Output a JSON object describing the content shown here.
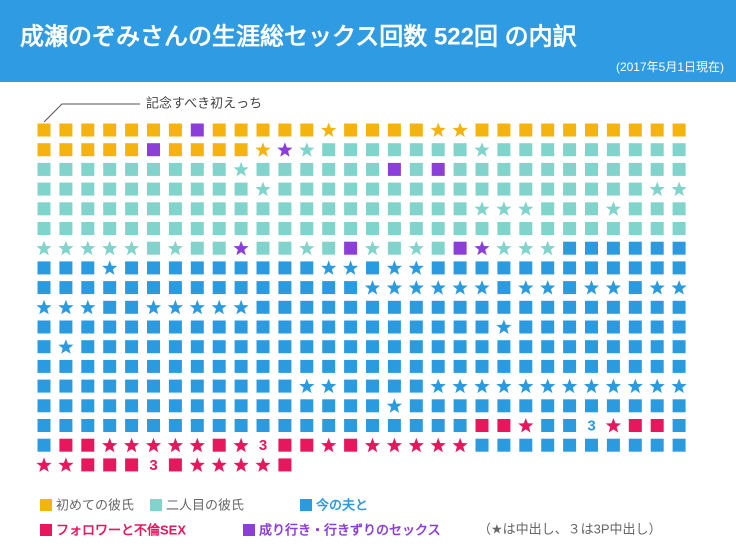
{
  "chart_data": {
    "type": "waffle",
    "title": "成瀬のぞみさんの生涯総セックス回数 522回 の内訳",
    "subtitle": "(2017年5月1日現在)",
    "annotation": "記念すべき初えっち",
    "three_label": "3",
    "legend_note": "（★は中出し、３は3P中出し）",
    "series": [
      {
        "name": "初めての彼氏",
        "color": "#f5b30f"
      },
      {
        "name": "二人目の彼氏",
        "color": "#80d4cc"
      },
      {
        "name": "今の夫と",
        "color": "#2b9be0"
      },
      {
        "name": "フォロワーと不倫SEX",
        "color": "#e8175d"
      },
      {
        "name": "成り行き・行きずりのセックス",
        "color": "#8b3fd8"
      }
    ],
    "runs": [
      [
        0,
        0,
        7
      ],
      [
        4,
        0,
        1
      ],
      [
        0,
        0,
        5
      ],
      [
        0,
        1,
        1
      ],
      [
        0,
        0,
        4
      ],
      [
        0,
        1,
        2
      ],
      [
        0,
        0,
        10
      ],
      [
        0,
        0,
        5
      ],
      [
        4,
        0,
        1
      ],
      [
        0,
        0,
        4
      ],
      [
        0,
        1,
        1
      ],
      [
        4,
        1,
        1
      ],
      [
        1,
        1,
        1
      ],
      [
        1,
        0,
        7
      ],
      [
        1,
        1,
        1
      ],
      [
        1,
        0,
        9
      ],
      [
        1,
        0,
        9
      ],
      [
        1,
        1,
        1
      ],
      [
        1,
        0,
        6
      ],
      [
        4,
        0,
        1
      ],
      [
        1,
        0,
        1
      ],
      [
        4,
        0,
        1
      ],
      [
        1,
        0,
        11
      ],
      [
        1,
        0,
        10
      ],
      [
        1,
        1,
        1
      ],
      [
        1,
        0,
        17
      ],
      [
        1,
        1,
        2
      ],
      [
        1,
        0,
        20
      ],
      [
        1,
        1,
        3
      ],
      [
        1,
        0,
        3
      ],
      [
        1,
        1,
        1
      ],
      [
        1,
        0,
        3
      ],
      [
        1,
        0,
        30
      ],
      [
        1,
        1,
        5
      ],
      [
        1,
        0,
        1
      ],
      [
        1,
        1,
        1
      ],
      [
        1,
        0,
        2
      ],
      [
        4,
        1,
        1
      ],
      [
        1,
        0,
        2
      ],
      [
        1,
        1,
        1
      ],
      [
        1,
        0,
        1
      ],
      [
        4,
        0,
        1
      ],
      [
        1,
        1,
        1
      ],
      [
        1,
        0,
        1
      ],
      [
        1,
        1,
        1
      ],
      [
        1,
        0,
        1
      ],
      [
        4,
        0,
        1
      ],
      [
        4,
        1,
        1
      ],
      [
        1,
        1,
        3
      ],
      [
        2,
        0,
        6
      ],
      [
        2,
        0,
        3
      ],
      [
        2,
        1,
        1
      ],
      [
        2,
        0,
        9
      ],
      [
        2,
        1,
        2
      ],
      [
        2,
        0,
        1
      ],
      [
        2,
        1,
        2
      ],
      [
        2,
        0,
        12
      ],
      [
        2,
        0,
        15
      ],
      [
        2,
        1,
        6
      ],
      [
        2,
        0,
        1
      ],
      [
        2,
        1,
        2
      ],
      [
        2,
        0,
        1
      ],
      [
        2,
        1,
        2
      ],
      [
        2,
        0,
        1
      ],
      [
        2,
        1,
        2
      ],
      [
        2,
        1,
        3
      ],
      [
        2,
        0,
        2
      ],
      [
        2,
        1,
        5
      ],
      [
        2,
        0,
        20
      ],
      [
        2,
        0,
        21
      ],
      [
        2,
        1,
        1
      ],
      [
        2,
        0,
        8
      ],
      [
        2,
        0,
        1
      ],
      [
        2,
        1,
        1
      ],
      [
        2,
        0,
        28
      ],
      [
        2,
        0,
        30
      ],
      [
        2,
        0,
        12
      ],
      [
        2,
        1,
        2
      ],
      [
        2,
        0,
        4
      ],
      [
        2,
        1,
        12
      ],
      [
        2,
        0,
        16
      ],
      [
        2,
        1,
        1
      ],
      [
        2,
        0,
        13
      ],
      [
        2,
        0,
        20
      ],
      [
        3,
        0,
        2
      ],
      [
        3,
        1,
        1
      ],
      [
        2,
        0,
        2
      ],
      [
        2,
        2,
        1
      ],
      [
        3,
        1,
        1
      ],
      [
        3,
        0,
        2
      ],
      [
        2,
        0,
        1
      ],
      [
        2,
        0,
        1
      ],
      [
        3,
        0,
        2
      ],
      [
        3,
        1,
        5
      ],
      [
        3,
        0,
        1
      ],
      [
        3,
        1,
        1
      ],
      [
        3,
        2,
        1
      ],
      [
        3,
        0,
        2
      ],
      [
        3,
        1,
        1
      ],
      [
        3,
        0,
        1
      ],
      [
        3,
        1,
        5
      ],
      [
        2,
        0,
        10
      ],
      [
        3,
        1,
        2
      ],
      [
        3,
        0,
        3
      ],
      [
        3,
        2,
        1
      ],
      [
        3,
        0,
        1
      ],
      [
        3,
        1,
        4
      ],
      [
        3,
        0,
        1
      ]
    ]
  }
}
